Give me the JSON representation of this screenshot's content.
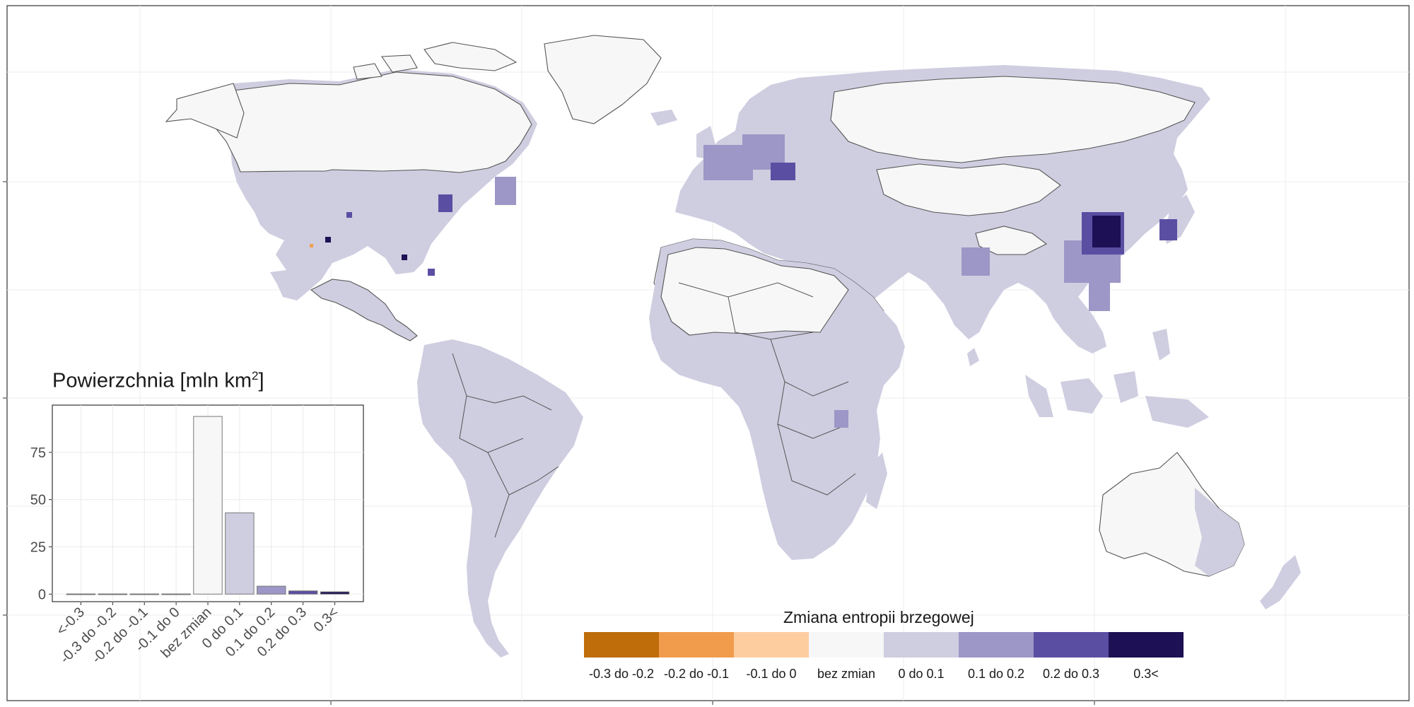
{
  "legend": {
    "title": "Zmiana entropii brzegowej",
    "items": [
      {
        "label": "-0.3 do -0.2",
        "color": "#be6d0a"
      },
      {
        "label": "-0.2 do -0.1",
        "color": "#f19c4c"
      },
      {
        "label": "-0.1 do 0",
        "color": "#fdcda0"
      },
      {
        "label": "bez zmian",
        "color": "#f7f7f7"
      },
      {
        "label": "0 do 0.1",
        "color": "#cfcde0"
      },
      {
        "label": "0.1 do 0.2",
        "color": "#9c97c6"
      },
      {
        "label": "0.2 do 0.3",
        "color": "#5a4ea3"
      },
      {
        "label": "0.3<",
        "color": "#1d1054"
      }
    ]
  },
  "inset": {
    "title_main": "Powierzchnia [mln km",
    "title_sup": "2",
    "title_end": "]"
  },
  "chart_data": {
    "type": "bar",
    "title": "Powierzchnia [mln km2]",
    "categories": [
      "<-0.3",
      "-0.3 do -0.2",
      "-0.2 do -0.1",
      "-0.1 do 0",
      "bez zmian",
      "0 do 0.1",
      "0.1 do 0.2",
      "0.2 do 0.3",
      "0.3<"
    ],
    "values": [
      0.1,
      0.1,
      0.1,
      0.1,
      94,
      43,
      4.2,
      1.7,
      1.2
    ],
    "colors": [
      "#f7f7f7",
      "#f7f7f7",
      "#f7f7f7",
      "#f7f7f7",
      "#f7f7f7",
      "#cfcde0",
      "#9c97c6",
      "#5a4ea3",
      "#1d1054"
    ],
    "yticks": [
      0,
      25,
      50,
      75
    ],
    "ylim": [
      -4,
      100
    ],
    "grid": true
  }
}
